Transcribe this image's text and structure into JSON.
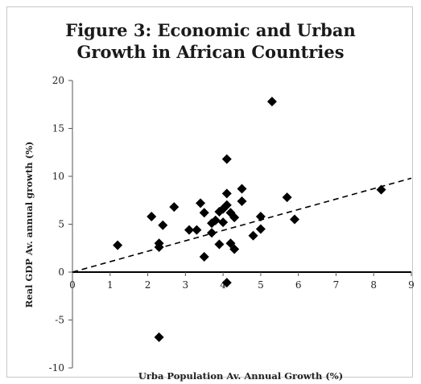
{
  "chart_data": {
    "type": "scatter",
    "title": "Figure 3: Economic and Urban\nGrowth in African Countries",
    "xlabel": "Urba Population Av. Annual Growth (%)",
    "ylabel": "Real GDP Av. annual growth (%)",
    "xlim": [
      0,
      9
    ],
    "ylim": [
      -10,
      20
    ],
    "x_ticks": [
      0,
      1,
      2,
      3,
      4,
      5,
      6,
      7,
      8,
      9
    ],
    "y_ticks": [
      -10,
      -5,
      0,
      5,
      10,
      15,
      20
    ],
    "grid": false,
    "legend": "none",
    "marker": "diamond",
    "color": "#000000",
    "trendline": {
      "style": "dashed",
      "x": [
        0,
        9
      ],
      "y": [
        0,
        9.8
      ]
    },
    "points": [
      {
        "x": 1.2,
        "y": 2.8
      },
      {
        "x": 2.1,
        "y": 5.8
      },
      {
        "x": 2.3,
        "y": 3.0
      },
      {
        "x": 2.3,
        "y": 2.6
      },
      {
        "x": 2.4,
        "y": 4.9
      },
      {
        "x": 2.3,
        "y": -6.8
      },
      {
        "x": 2.7,
        "y": 6.8
      },
      {
        "x": 3.1,
        "y": 4.4
      },
      {
        "x": 3.3,
        "y": 4.4
      },
      {
        "x": 3.4,
        "y": 7.2
      },
      {
        "x": 3.5,
        "y": 6.2
      },
      {
        "x": 3.5,
        "y": 1.6
      },
      {
        "x": 3.7,
        "y": 5.1
      },
      {
        "x": 3.7,
        "y": 4.1
      },
      {
        "x": 3.8,
        "y": 5.4
      },
      {
        "x": 3.9,
        "y": 6.3
      },
      {
        "x": 3.9,
        "y": 2.9
      },
      {
        "x": 4.0,
        "y": 5.2
      },
      {
        "x": 4.0,
        "y": 6.6
      },
      {
        "x": 4.1,
        "y": 8.2
      },
      {
        "x": 4.1,
        "y": 11.8
      },
      {
        "x": 4.1,
        "y": 7.0
      },
      {
        "x": 4.1,
        "y": -1.1
      },
      {
        "x": 4.2,
        "y": 6.2
      },
      {
        "x": 4.2,
        "y": 3.0
      },
      {
        "x": 4.3,
        "y": 2.4
      },
      {
        "x": 4.3,
        "y": 5.7
      },
      {
        "x": 4.5,
        "y": 8.7
      },
      {
        "x": 4.5,
        "y": 7.4
      },
      {
        "x": 4.8,
        "y": 3.8
      },
      {
        "x": 5.0,
        "y": 5.8
      },
      {
        "x": 5.0,
        "y": 4.5
      },
      {
        "x": 5.3,
        "y": 17.8
      },
      {
        "x": 5.7,
        "y": 7.8
      },
      {
        "x": 5.9,
        "y": 5.5
      },
      {
        "x": 8.2,
        "y": 8.6
      }
    ]
  }
}
